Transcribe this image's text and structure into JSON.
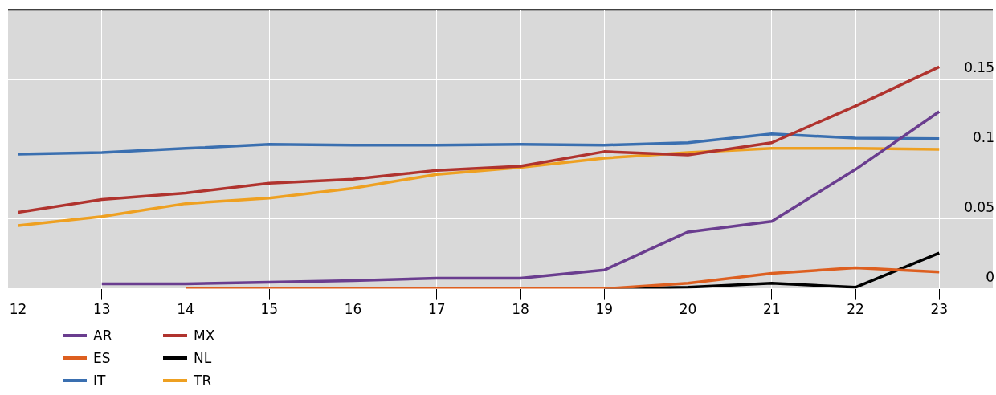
{
  "chart_data": {
    "type": "line",
    "x": [
      12,
      13,
      14,
      15,
      16,
      17,
      18,
      19,
      20,
      21,
      22,
      23
    ],
    "series": [
      {
        "name": "AR",
        "color": "#6a3d8f",
        "values": [
          null,
          0.0035,
          0.0035,
          0.0047,
          0.0058,
          0.0076,
          0.0076,
          0.0134,
          0.0407,
          0.0483,
          0.0855,
          0.127
        ]
      },
      {
        "name": "MX",
        "color": "#b0332e",
        "values": [
          0.0547,
          0.064,
          0.0686,
          0.0756,
          0.0785,
          0.0849,
          0.0878,
          0.0983,
          0.0959,
          0.1047,
          0.131,
          0.159
        ]
      },
      {
        "name": "ES",
        "color": "#dd5f20",
        "values": [
          null,
          null,
          0,
          0,
          0,
          0,
          0,
          0,
          0.004,
          0.011,
          0.015,
          0.012
        ]
      },
      {
        "name": "NL",
        "color": "#000000",
        "values": [
          null,
          null,
          null,
          null,
          null,
          null,
          null,
          0,
          0.001,
          0.004,
          0.001,
          0.0256
        ]
      },
      {
        "name": "IT",
        "color": "#3a6fb0",
        "values": [
          0.0965,
          0.0977,
          0.1006,
          0.1035,
          0.103,
          0.103,
          0.1035,
          0.103,
          0.1047,
          0.111,
          0.108,
          0.1076
        ]
      },
      {
        "name": "TR",
        "color": "#eea021",
        "values": [
          0.0453,
          0.0517,
          0.061,
          0.065,
          0.072,
          0.082,
          0.087,
          0.0936,
          0.0977,
          0.1006,
          0.1006,
          0.1
        ]
      }
    ],
    "xlim": [
      11.88,
      23.64
    ],
    "xticks": [
      12,
      13,
      14,
      15,
      16,
      17,
      18,
      19,
      20,
      21,
      22,
      23
    ],
    "ylim": [
      0,
      0.2
    ],
    "yticks": [
      0,
      0.05,
      0.1,
      0.15
    ],
    "grid": true,
    "legend": "bottom left",
    "marker": "none",
    "line_style": "solid"
  }
}
